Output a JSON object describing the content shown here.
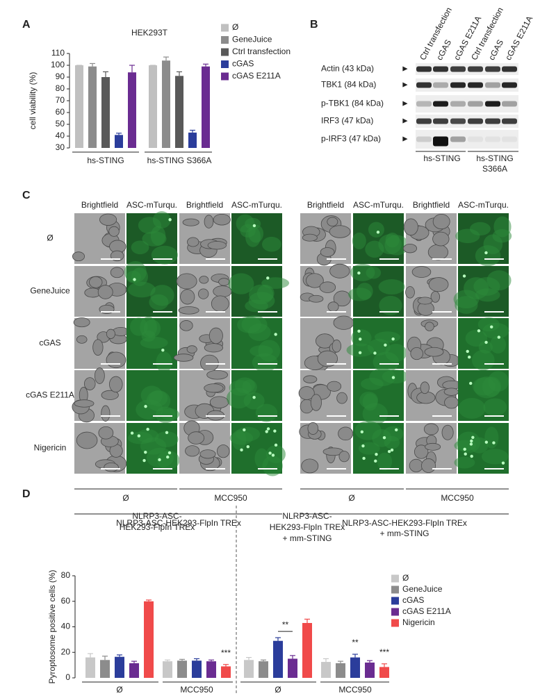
{
  "panels": [
    "A",
    "B",
    "C",
    "D"
  ],
  "chart_data": [
    {
      "type": "bar",
      "title": "HEK293T",
      "ylabel": "cell viability (%)",
      "categories": [
        "hs-STING",
        "hs-STING S366A"
      ],
      "series": [
        {
          "name": "Ø",
          "color": "#c0c0c0",
          "values": [
            100,
            100
          ],
          "errors": [
            0,
            0
          ]
        },
        {
          "name": "GeneJuice",
          "color": "#8c8c8c",
          "values": [
            99,
            104
          ],
          "errors": [
            2.5,
            3
          ]
        },
        {
          "name": "Ctrl transfection",
          "color": "#595959",
          "values": [
            90,
            91
          ],
          "errors": [
            4.5,
            3.5
          ]
        },
        {
          "name": "cGAS",
          "color": "#2b3d9b",
          "values": [
            41,
            43
          ],
          "errors": [
            1.5,
            2
          ]
        },
        {
          "name": "cGAS E211A",
          "color": "#6a2c91",
          "values": [
            94,
            99
          ],
          "errors": [
            6,
            2
          ]
        }
      ],
      "ylim": [
        30,
        110
      ],
      "yticks": [
        30,
        40,
        50,
        60,
        70,
        80,
        90,
        100,
        110
      ]
    },
    {
      "type": "bar",
      "ylabel": "Pyroptosome positive cells (%)",
      "group_titles": [
        [
          "NLRP3-ASC-",
          "HEK293-FlpIn TREx"
        ],
        [
          "NLRP3-ASC-",
          "HEK293-FlpIn TREx",
          "+ mm-STING"
        ]
      ],
      "categories": [
        "Ø",
        "MCC950",
        "Ø",
        "MCC950"
      ],
      "series": [
        {
          "name": "Ø",
          "color": "#c8c8c8",
          "values": [
            16,
            13,
            14,
            12.5
          ],
          "errors": [
            3,
            1,
            2,
            2.5
          ]
        },
        {
          "name": "GeneJuice",
          "color": "#8c8c8c",
          "values": [
            14,
            13.5,
            13,
            11.5
          ],
          "errors": [
            3,
            1,
            1,
            1.5
          ]
        },
        {
          "name": "cGAS",
          "color": "#2b3d9b",
          "values": [
            16.5,
            13.5,
            29,
            16
          ],
          "errors": [
            1.5,
            1.5,
            2.5,
            2.5
          ]
        },
        {
          "name": "cGAS E211A",
          "color": "#6a2c91",
          "values": [
            11.5,
            13,
            15,
            12
          ],
          "errors": [
            1.5,
            1,
            2.5,
            1.5
          ]
        },
        {
          "name": "Nigericin",
          "color": "#f04a4a",
          "values": [
            60,
            9,
            43,
            8.5
          ],
          "errors": [
            1,
            1.5,
            3,
            2.5
          ]
        }
      ],
      "annotations": [
        {
          "text": "**",
          "color": "#222222"
        },
        {
          "text": "***",
          "color": "#f04a4a"
        },
        {
          "text": "**",
          "color": "#2b3d9b"
        },
        {
          "text": "***",
          "color": "#f04a4a"
        }
      ],
      "ylim": [
        0,
        80
      ],
      "yticks": [
        0,
        20,
        40,
        60,
        80
      ]
    }
  ],
  "blot": {
    "lanes": [
      "Ctrl transfection",
      "cGAS",
      "cGAS E211A",
      "Ctrl transfection",
      "cGAS",
      "cGAS E211A"
    ],
    "rows": [
      "Actin (43 kDa)",
      "TBK1 (84 kDa)",
      "p-TBK1 (84 kDa)",
      "IRF3 (47 kDa)",
      "p-IRF3 (47 kDa)"
    ],
    "arrow": "►",
    "groups": [
      [
        "hs-STING"
      ],
      [
        "hs-STING",
        "S366A"
      ]
    ]
  },
  "micrographs": {
    "channels": [
      "Brightfield",
      "ASC-mTurqu."
    ],
    "rows": [
      "Ø",
      "GeneJuice",
      "cGAS",
      "cGAS E211A",
      "Nigericin"
    ],
    "treatments": [
      "Ø",
      "MCC950",
      "Ø",
      "MCC950"
    ],
    "cell_lines": [
      [
        "NLRP3-ASC-HEK293-FlpIn TREx"
      ],
      [
        "NLRP3-ASC-HEK293-FlpIn TREx",
        "+ mm-STING"
      ]
    ]
  }
}
